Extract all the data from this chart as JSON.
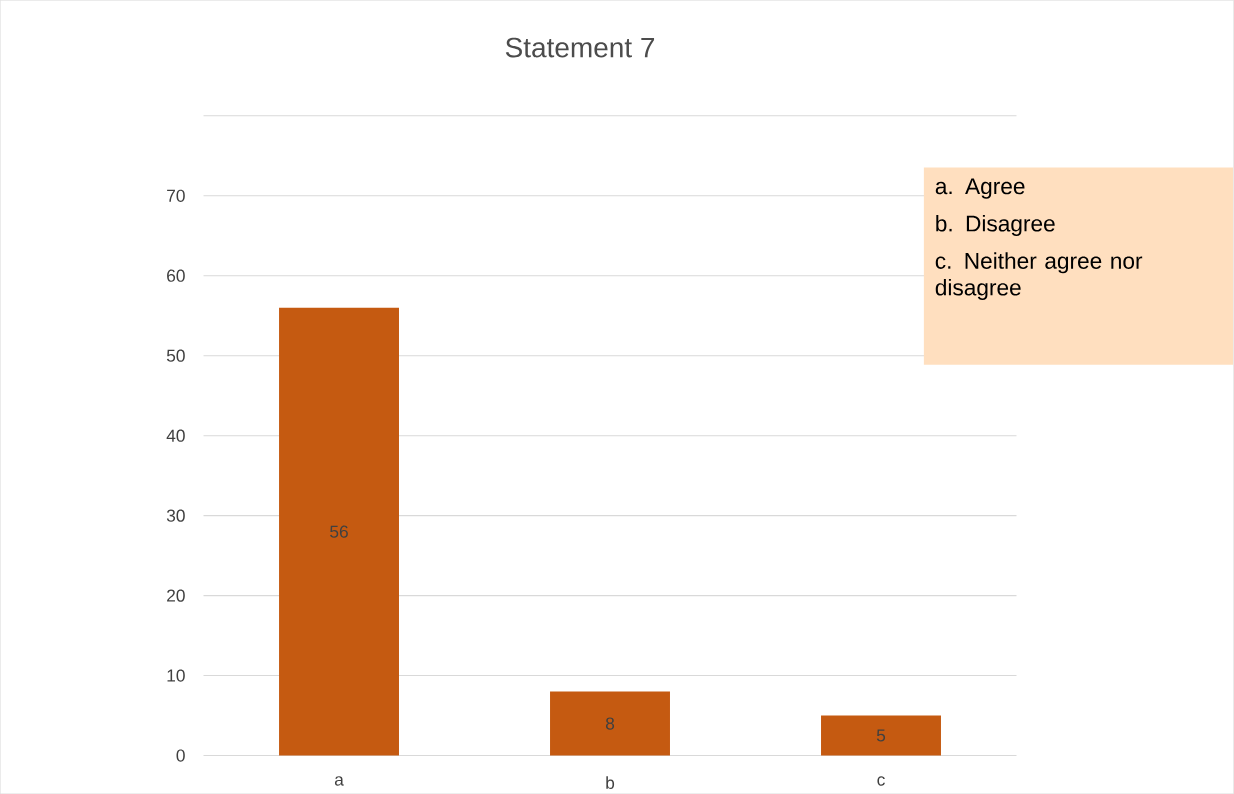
{
  "chart_data": {
    "type": "bar",
    "title": "Statement 7",
    "categories": [
      "a",
      "b",
      "c"
    ],
    "values": [
      56,
      8,
      5
    ],
    "color": "#c55a11",
    "data_labels": true,
    "ylim": [
      0,
      80
    ],
    "yticks": [
      0,
      10,
      20,
      30,
      40,
      50,
      60,
      70,
      {
        "value": 80,
        "label": null
      }
    ],
    "grid": "y",
    "annotations": [
      "a. Agree",
      "b. Disagree",
      "c. Neither agree nor disagree"
    ]
  }
}
